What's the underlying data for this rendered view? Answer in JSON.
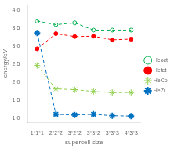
{
  "chart_data": {
    "type": "line",
    "categories": [
      "1*1*1",
      "2*2*2",
      "3*2*2",
      "3*3*2",
      "3*3*3",
      "4*3*3"
    ],
    "series": [
      {
        "name": "Heoct",
        "color": "#00b050",
        "marker": "circle_open",
        "line_style": "dashed",
        "values": [
          3.7,
          3.6,
          3.65,
          3.45,
          3.45,
          3.45
        ]
      },
      {
        "name": "Hetet",
        "color": "#ff0000",
        "marker": "circle",
        "line_style": "dashed",
        "values": [
          2.93,
          3.35,
          3.27,
          3.28,
          3.18,
          3.2
        ]
      },
      {
        "name": "HeCo",
        "color": "#92d050",
        "marker": "star_open",
        "line_style": "dashed",
        "values": [
          2.47,
          1.82,
          1.8,
          1.75,
          1.72,
          1.72
        ]
      },
      {
        "name": "HeZr",
        "color": "#0070c0",
        "marker": "star",
        "line_style": "dashed",
        "values": [
          3.37,
          1.12,
          1.1,
          1.12,
          1.08,
          1.07
        ]
      }
    ],
    "xlabel": "supercell size",
    "ylabel": "energy/eV",
    "ylim": [
      0.9,
      4.15
    ],
    "yticks": [
      {
        "value": 1.0,
        "label": "1.0"
      },
      1.5,
      {
        "value": 2.0,
        "label": "2.0"
      },
      2.5,
      {
        "value": 3.0,
        "label": "3.0"
      },
      3.5,
      {
        "value": 4.0,
        "label": "4.0"
      }
    ],
    "grid": false,
    "legend": "right"
  }
}
